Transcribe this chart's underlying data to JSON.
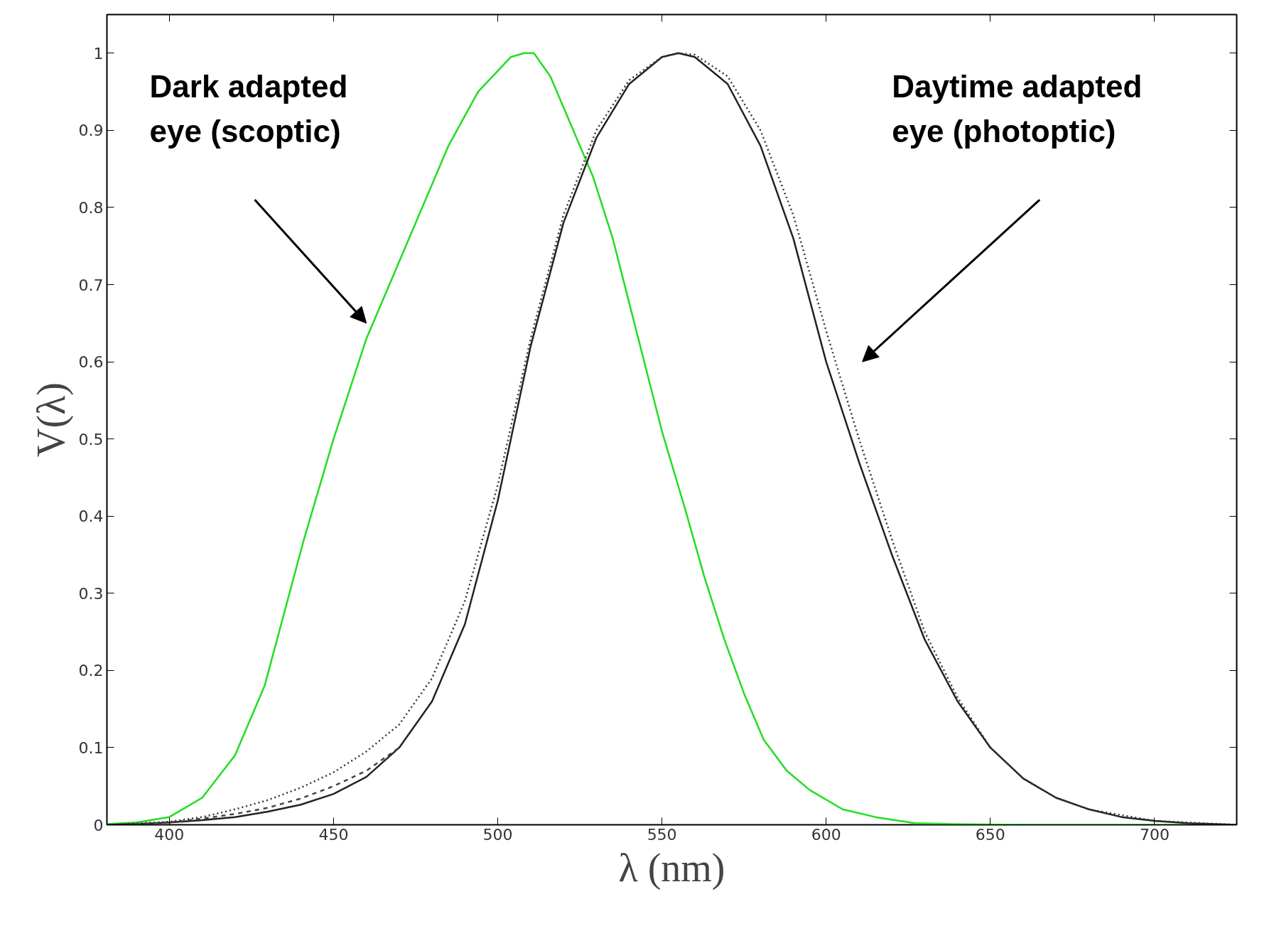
{
  "chart_data": {
    "type": "line",
    "xlabel": "λ (nm)",
    "ylabel": "V(λ)",
    "xlim": [
      381,
      725
    ],
    "ylim": [
      0,
      1.05
    ],
    "xticks": [
      400,
      450,
      500,
      550,
      600,
      650,
      700
    ],
    "yticks": [
      0,
      0.1,
      0.2,
      0.3,
      0.4,
      0.5,
      0.6,
      0.7,
      0.8,
      0.9,
      1
    ],
    "grid": false,
    "marker": "none",
    "series": [
      {
        "color": "#22dd22",
        "line_style": "solid",
        "x": [
          381,
          390,
          400,
          410,
          420,
          429,
          441,
          450,
          460,
          468,
          476,
          485,
          494,
          504,
          508,
          511,
          516,
          522,
          529,
          535,
          541,
          550,
          557,
          563,
          569,
          575,
          581,
          588,
          595,
          605,
          615,
          627,
          639,
          660,
          700,
          725
        ],
        "values": [
          0.001,
          0.003,
          0.01,
          0.035,
          0.09,
          0.18,
          0.37,
          0.5,
          0.63,
          0.71,
          0.79,
          0.88,
          0.95,
          0.995,
          1,
          1,
          0.97,
          0.91,
          0.84,
          0.76,
          0.66,
          0.51,
          0.41,
          0.32,
          0.24,
          0.17,
          0.11,
          0.07,
          0.045,
          0.02,
          0.01,
          0.002,
          0.001,
          0,
          0,
          0
        ]
      },
      {
        "color": "#222222",
        "line_style": "solid",
        "x": [
          381,
          390,
          400,
          410,
          420,
          430,
          440,
          450,
          460,
          470,
          480,
          490,
          500,
          510,
          520,
          530,
          540,
          550,
          555,
          560,
          570,
          580,
          590,
          600,
          610,
          620,
          630,
          640,
          650,
          660,
          670,
          680,
          690,
          700,
          710,
          725
        ],
        "values": [
          0,
          0.001,
          0.003,
          0.006,
          0.01,
          0.017,
          0.026,
          0.04,
          0.062,
          0.1,
          0.16,
          0.26,
          0.42,
          0.62,
          0.78,
          0.89,
          0.96,
          0.995,
          1,
          0.995,
          0.96,
          0.88,
          0.76,
          0.6,
          0.47,
          0.35,
          0.24,
          0.16,
          0.1,
          0.06,
          0.035,
          0.02,
          0.01,
          0.005,
          0.002,
          0
        ]
      },
      {
        "color": "#333333",
        "line_style": "dotted",
        "x": [
          381,
          400,
          410,
          420,
          430,
          440,
          450,
          460,
          470,
          480,
          490,
          500,
          510,
          520,
          530,
          540,
          550,
          555,
          560,
          570,
          580,
          590,
          600,
          610,
          620,
          630,
          640,
          650,
          660,
          670,
          680,
          700,
          725
        ],
        "values": [
          0,
          0.004,
          0.01,
          0.02,
          0.032,
          0.048,
          0.068,
          0.095,
          0.13,
          0.19,
          0.29,
          0.44,
          0.63,
          0.79,
          0.9,
          0.965,
          0.995,
          1,
          0.998,
          0.97,
          0.9,
          0.79,
          0.64,
          0.5,
          0.37,
          0.25,
          0.165,
          0.1,
          0.06,
          0.035,
          0.02,
          0.005,
          0
        ]
      },
      {
        "color": "#444444",
        "line_style": "dashed",
        "x": [
          390,
          400,
          410,
          420,
          430,
          440,
          450,
          460,
          470
        ],
        "values": [
          0.001,
          0.003,
          0.008,
          0.014,
          0.022,
          0.034,
          0.05,
          0.07,
          0.1
        ]
      }
    ],
    "annotations": [
      "Dark adapted\neye (scoptic)",
      "Daytime adapted\neye (photoptic)"
    ]
  }
}
